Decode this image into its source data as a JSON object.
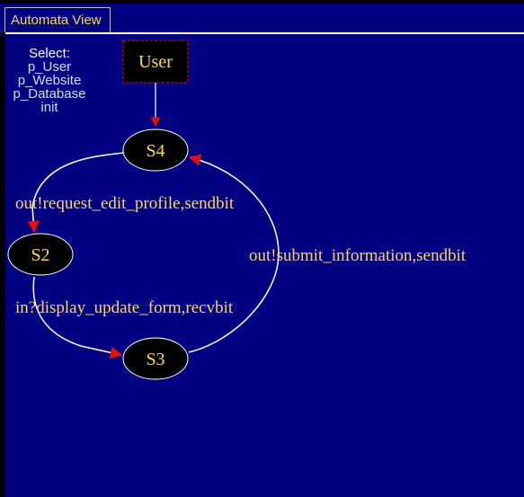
{
  "window": {
    "tab_label": "Automata View"
  },
  "selector": {
    "title": "Select:",
    "options": [
      "p_User",
      "p_Website",
      "p_Database",
      "init"
    ]
  },
  "automaton": {
    "actor": "User",
    "states": [
      "S4",
      "S2",
      "S3"
    ],
    "transitions": [
      {
        "from": "S4",
        "to": "S2",
        "label": "out!request_edit_profile,sendbit"
      },
      {
        "from": "S2",
        "to": "S3",
        "label": "in?display_update_form,recvbit"
      },
      {
        "from": "S3",
        "to": "S4",
        "label": "out!submit_information,sendbit"
      }
    ]
  },
  "colors": {
    "canvas_background": "#000080",
    "label_text": "#ffd75a",
    "edge": "#ffffff",
    "arrowhead": "#e01010",
    "state_fill": "#000000",
    "actor_border": "#e01010"
  }
}
